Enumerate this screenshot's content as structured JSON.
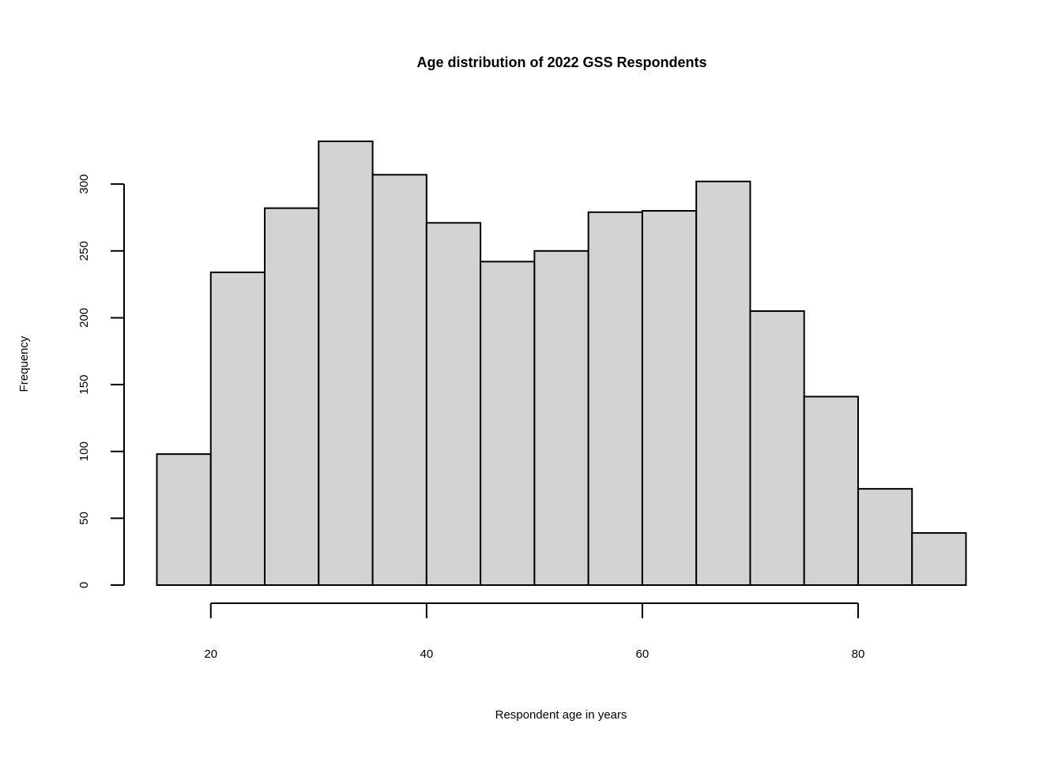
{
  "chart_data": {
    "type": "bar",
    "title": "Age distribution of 2022 GSS Respondents",
    "xlabel": "Respondent age in years",
    "ylabel": "Frequency",
    "bins": [
      {
        "start": 15,
        "end": 20,
        "count": 98
      },
      {
        "start": 20,
        "end": 25,
        "count": 234
      },
      {
        "start": 25,
        "end": 30,
        "count": 282
      },
      {
        "start": 30,
        "end": 35,
        "count": 332
      },
      {
        "start": 35,
        "end": 40,
        "count": 307
      },
      {
        "start": 40,
        "end": 45,
        "count": 271
      },
      {
        "start": 45,
        "end": 50,
        "count": 242
      },
      {
        "start": 50,
        "end": 55,
        "count": 250
      },
      {
        "start": 55,
        "end": 60,
        "count": 279
      },
      {
        "start": 60,
        "end": 65,
        "count": 280
      },
      {
        "start": 65,
        "end": 70,
        "count": 302
      },
      {
        "start": 70,
        "end": 75,
        "count": 205
      },
      {
        "start": 75,
        "end": 80,
        "count": 141
      },
      {
        "start": 80,
        "end": 85,
        "count": 72
      },
      {
        "start": 85,
        "end": 90,
        "count": 39
      }
    ],
    "x_ticks": [
      20,
      40,
      60,
      80
    ],
    "y_ticks": [
      0,
      50,
      100,
      150,
      200,
      250,
      300
    ],
    "xlim": [
      15,
      90
    ],
    "ylim": [
      0,
      332
    ],
    "bar_color": "#d3d3d3",
    "grid": false,
    "legend": false
  }
}
